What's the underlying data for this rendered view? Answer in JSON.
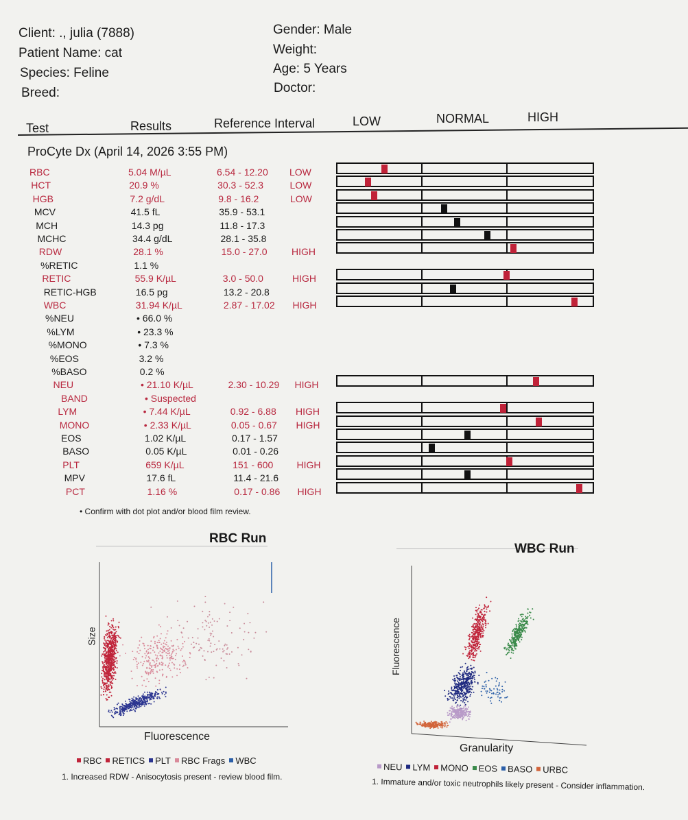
{
  "patient": {
    "client": "Client: ., julia (7888)",
    "patient_name": "Patient Name: cat",
    "species": "Species: Feline",
    "breed": "Breed:",
    "gender": "Gender: Male",
    "weight": "Weight:",
    "age": "Age: 5 Years",
    "doctor": "Doctor:"
  },
  "columns": {
    "test": "Test",
    "results": "Results",
    "reference": "Reference Interval",
    "low": "LOW",
    "normal": "NORMAL",
    "high": "HIGH"
  },
  "section_title": "ProCyte Dx (April 14, 2026 3:55 PM)",
  "colors": {
    "abnormal": "#b8283f",
    "normal": "#1a1a1a"
  },
  "rows": [
    {
      "test": "RBC",
      "result": "5.04 M/µL",
      "ref": "6.54 - 12.20",
      "flag": "LOW",
      "abn": true,
      "marker": 0.185
    },
    {
      "test": "HCT",
      "result": "20.9 %",
      "ref": "30.3 - 52.3",
      "flag": "LOW",
      "abn": true,
      "marker": 0.12
    },
    {
      "test": "HGB",
      "result": "7.2 g/dL",
      "ref": "9.8 - 16.2",
      "flag": "LOW",
      "abn": true,
      "marker": 0.145
    },
    {
      "test": "MCV",
      "result": "41.5 fL",
      "ref": "35.9 - 53.1",
      "flag": "",
      "abn": false,
      "marker": 0.42
    },
    {
      "test": "MCH",
      "result": "14.3 pg",
      "ref": "11.8 - 17.3",
      "flag": "",
      "abn": false,
      "marker": 0.47
    },
    {
      "test": "MCHC",
      "result": "34.4 g/dL",
      "ref": "28.1 - 35.8",
      "flag": "",
      "abn": false,
      "marker": 0.59
    },
    {
      "test": "RDW",
      "result": "28.1 %",
      "ref": "15.0 - 27.0",
      "flag": "HIGH",
      "abn": true,
      "marker": 0.69
    },
    {
      "test": "%RETIC",
      "result": "1.1 %",
      "ref": "",
      "flag": "",
      "abn": false,
      "marker": null
    },
    {
      "test": "RETIC",
      "result": "55.9 K/µL",
      "ref": "3.0 - 50.0",
      "flag": "HIGH",
      "abn": true,
      "marker": 0.665
    },
    {
      "test": "RETIC-HGB",
      "result": "16.5 pg",
      "ref": "13.2 - 20.8",
      "flag": "",
      "abn": false,
      "marker": 0.455
    },
    {
      "test": "WBC",
      "result": "31.94 K/µL",
      "ref": "2.87 - 17.02",
      "flag": "HIGH",
      "abn": true,
      "marker": 0.93
    },
    {
      "test": "%NEU",
      "result": "• 66.0 %",
      "ref": "",
      "flag": "",
      "abn": false,
      "marker": null
    },
    {
      "test": "%LYM",
      "result": "• 23.3 %",
      "ref": "",
      "flag": "",
      "abn": false,
      "marker": null
    },
    {
      "test": "%MONO",
      "result": "• 7.3 %",
      "ref": "",
      "flag": "",
      "abn": false,
      "marker": null
    },
    {
      "test": "%EOS",
      "result": "3.2 %",
      "ref": "",
      "flag": "",
      "abn": false,
      "marker": null
    },
    {
      "test": "%BASO",
      "result": "0.2 %",
      "ref": "",
      "flag": "",
      "abn": false,
      "marker": null
    },
    {
      "test": "NEU",
      "result": "• 21.10 K/µL",
      "ref": "2.30 - 10.29",
      "flag": "HIGH",
      "abn": true,
      "marker": 0.78
    },
    {
      "test": "BAND",
      "result": "• Suspected",
      "ref": "",
      "flag": "",
      "abn": true,
      "marker": null
    },
    {
      "test": "LYM",
      "result": "• 7.44 K/µL",
      "ref": "0.92 - 6.88",
      "flag": "HIGH",
      "abn": true,
      "marker": 0.65
    },
    {
      "test": "MONO",
      "result": "• 2.33 K/µL",
      "ref": "0.05 - 0.67",
      "flag": "HIGH",
      "abn": true,
      "marker": 0.79
    },
    {
      "test": "EOS",
      "result": "1.02 K/µL",
      "ref": "0.17 - 1.57",
      "flag": "",
      "abn": false,
      "marker": 0.51
    },
    {
      "test": "BASO",
      "result": "0.05 K/µL",
      "ref": "0.01 - 0.26",
      "flag": "",
      "abn": false,
      "marker": 0.37
    },
    {
      "test": "PLT",
      "result": "659 K/µL",
      "ref": "151 - 600",
      "flag": "HIGH",
      "abn": true,
      "marker": 0.675
    },
    {
      "test": "MPV",
      "result": "17.6 fL",
      "ref": "11.4 - 21.6",
      "flag": "",
      "abn": false,
      "marker": 0.51
    },
    {
      "test": "PCT",
      "result": "1.16 %",
      "ref": "0.17 - 0.86",
      "flag": "HIGH",
      "abn": true,
      "marker": 0.95
    }
  ],
  "footnote": "• Confirm with dot plot and/or blood film review.",
  "rbc_run": {
    "title": "RBC Run",
    "xlabel": "Fluorescence",
    "ylabel": "Size",
    "legend": [
      {
        "label": "RBC",
        "color": "#c0243a"
      },
      {
        "label": "RETICS",
        "color": "#c0243a"
      },
      {
        "label": "PLT",
        "color": "#2b3590"
      },
      {
        "label": "RBC Frags",
        "color": "#d98a9a"
      },
      {
        "label": "WBC",
        "color": "#2b5fa8"
      }
    ],
    "note": "1. Increased RDW - Anisocytosis present - review blood film."
  },
  "wbc_run": {
    "title": "WBC Run",
    "xlabel": "Granularity",
    "ylabel": "Fluorescence",
    "legend": [
      {
        "label": "NEU",
        "color": "#b89ac8"
      },
      {
        "label": "LYM",
        "color": "#1f2a80"
      },
      {
        "label": "MONO",
        "color": "#c0243a"
      },
      {
        "label": "EOS",
        "color": "#3a8a4a"
      },
      {
        "label": "BASO",
        "color": "#2b5fa8"
      },
      {
        "label": "URBC",
        "color": "#d2643a"
      }
    ],
    "note": "1. Immature and/or toxic neutrophils likely present - Consider inflammation."
  }
}
